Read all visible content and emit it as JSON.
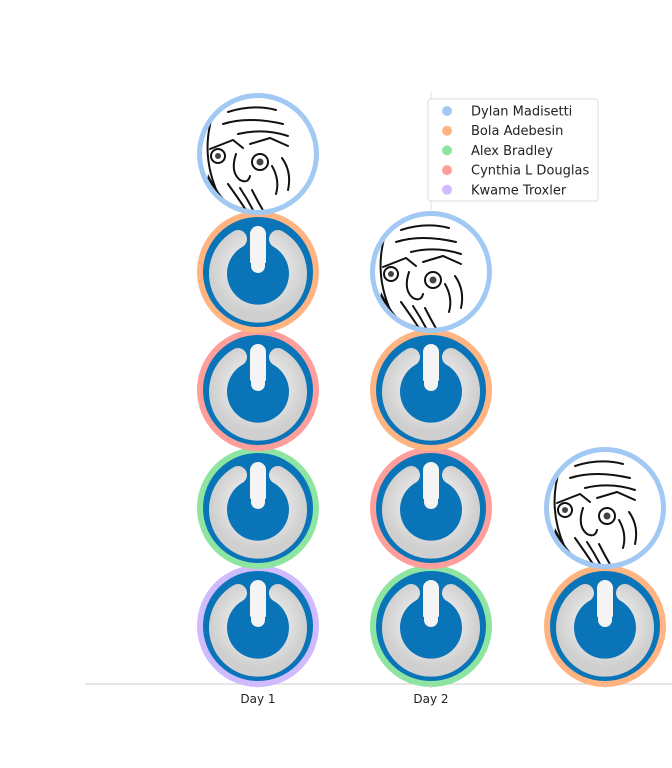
{
  "chart_data": {
    "type": "stacked-avatars",
    "title": "",
    "xlabel": "",
    "ylabel": "",
    "categories": [
      "Day 1",
      "Day 2",
      ""
    ],
    "legend": {
      "placement": "top-right",
      "entries": [
        {
          "name": "Dylan Madisetti",
          "color": "#a1c9f4",
          "avatar": "rage-face-icon"
        },
        {
          "name": "Bola Adebesin",
          "color": "#ffb482",
          "avatar": "power-logo-icon"
        },
        {
          "name": "Alex Bradley",
          "color": "#8de5a1",
          "avatar": "power-logo-icon"
        },
        {
          "name": "Cynthia L Douglas",
          "color": "#ff9f9b",
          "avatar": "power-logo-icon"
        },
        {
          "name": "Kwame Troxler",
          "color": "#d0bbff",
          "avatar": "power-logo-icon"
        }
      ]
    },
    "columns": [
      {
        "category": "Day 1",
        "stack": [
          "Kwame Troxler",
          "Alex Bradley",
          "Cynthia L Douglas",
          "Bola Adebesin",
          "Dylan Madisetti"
        ]
      },
      {
        "category": "Day 2",
        "stack": [
          "Alex Bradley",
          "Cynthia L Douglas",
          "Bola Adebesin",
          "Dylan Madisetti"
        ]
      },
      {
        "category": "",
        "stack": [
          "Bola Adebesin",
          "Dylan Madisetti"
        ]
      }
    ],
    "grid": false
  }
}
